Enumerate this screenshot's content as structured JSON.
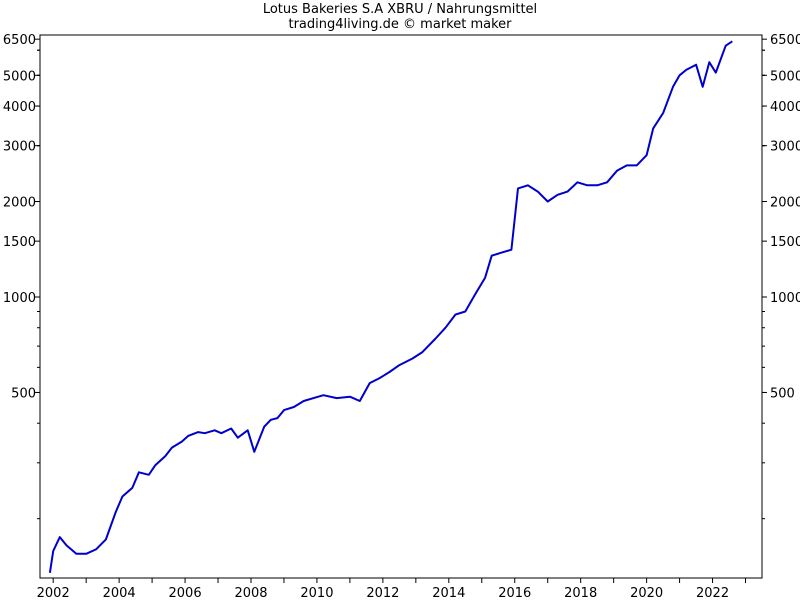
{
  "chart_data": {
    "type": "line",
    "title": "Lotus Bakeries S.A XBRU / Nahrungsmittel",
    "subtitle": "trading4living.de © market maker",
    "xlabel": "",
    "ylabel": "",
    "y_scale": "log",
    "ylim": [
      130,
      6700
    ],
    "x_ticks": [
      "2002",
      "2004",
      "2006",
      "2008",
      "2010",
      "2012",
      "2014",
      "2016",
      "2018",
      "2020",
      "2022"
    ],
    "y_ticks": [
      6500,
      5000,
      4000,
      3000,
      2000,
      1500,
      1000,
      500
    ],
    "grid": false,
    "line_color": "#0000cc",
    "series": [
      {
        "x": [
          2001.9,
          2002.0,
          2002.2,
          2002.4,
          2002.7,
          2003.0,
          2003.3,
          2003.6,
          2003.9,
          2004.1,
          2004.4,
          2004.6,
          2004.9,
          2005.1,
          2005.4,
          2005.6,
          2005.9,
          2006.1,
          2006.4,
          2006.6,
          2006.9,
          2007.1,
          2007.4,
          2007.6,
          2007.9,
          2008.1,
          2008.4,
          2008.6,
          2008.8,
          2009.0,
          2009.3,
          2009.6,
          2009.9,
          2010.2,
          2010.6,
          2011.0,
          2011.3,
          2011.6,
          2011.9,
          2012.2,
          2012.5,
          2012.9,
          2013.2,
          2013.6,
          2013.9,
          2014.2,
          2014.5,
          2014.8,
          2015.1,
          2015.3,
          2015.6,
          2015.9,
          2016.1,
          2016.4,
          2016.7,
          2017.0,
          2017.3,
          2017.6,
          2017.9,
          2018.2,
          2018.5,
          2018.8,
          2019.1,
          2019.4,
          2019.7,
          2020.0,
          2020.2,
          2020.5,
          2020.8,
          2021.0,
          2021.2,
          2021.5,
          2021.7,
          2021.9,
          2022.1,
          2022.4,
          2022.6
        ],
        "values": [
          135,
          158,
          175,
          165,
          155,
          155,
          160,
          172,
          210,
          235,
          250,
          280,
          275,
          295,
          315,
          335,
          350,
          365,
          375,
          372,
          380,
          372,
          385,
          360,
          380,
          325,
          390,
          410,
          415,
          440,
          450,
          470,
          480,
          490,
          480,
          485,
          470,
          535,
          555,
          580,
          610,
          640,
          670,
          740,
          800,
          880,
          900,
          1020,
          1150,
          1350,
          1380,
          1410,
          2200,
          2250,
          2150,
          2000,
          2100,
          2150,
          2300,
          2250,
          2250,
          2300,
          2500,
          2600,
          2600,
          2800,
          3400,
          3800,
          4600,
          5000,
          5200,
          5400,
          4600,
          5500,
          5100,
          6200,
          6400
        ]
      }
    ]
  }
}
